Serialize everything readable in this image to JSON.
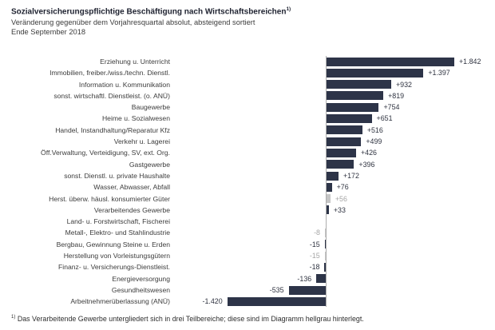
{
  "header": {
    "title": "Sozialversicherungspflichtige Beschäftigung nach Wirtschaftsbereichen",
    "title_superscript": "1)",
    "subtitle": "Veränderung gegenüber dem Vorjahresquartal absolut, absteigend sortiert",
    "period": "Ende September 2018"
  },
  "footnote": {
    "superscript": "1)",
    "text": "Das Verarbeitende Gewerbe untergliedert sich in drei Teilbereiche; diese sind im Diagramm hellgrau hinterlegt."
  },
  "colors": {
    "bar_primary": "#2d3448",
    "bar_highlight": "#c6c6c6",
    "value_primary": "#2f3340",
    "value_highlight": "#a6a6a6",
    "label_text": "#3c3c3c",
    "axis_line": "#adadad"
  },
  "chart_data": {
    "type": "bar",
    "orientation": "horizontal",
    "title": "Sozialversicherungspflichtige Beschäftigung nach Wirtschaftsbereichen 1)",
    "subtitle": "Veränderung gegenüber dem Vorjahresquartal absolut, absteigend sortiert",
    "period": "Ende September 2018",
    "sort": "absteigend",
    "value_range": [
      -1420,
      1842
    ],
    "grid": false,
    "legend": false,
    "highlight_note": "hellgrau = Teilbereiche des Verarbeitenden Gewerbes",
    "rows": [
      {
        "label": "Erziehung u. Unterricht",
        "value": 1842,
        "display": "+1.842",
        "gray": false
      },
      {
        "label": "Immobilien, freiber./wiss./techn. Dienstl.",
        "value": 1397,
        "display": "+1.397",
        "gray": false
      },
      {
        "label": "Information u. Kommunikation",
        "value": 932,
        "display": "+932",
        "gray": false
      },
      {
        "label": "sonst. wirtschaftl. Dienstleist. (o. ANÜ)",
        "value": 819,
        "display": "+819",
        "gray": false
      },
      {
        "label": "Baugewerbe",
        "value": 754,
        "display": "+754",
        "gray": false
      },
      {
        "label": "Heime u. Sozialwesen",
        "value": 651,
        "display": "+651",
        "gray": false
      },
      {
        "label": "Handel, Instandhaltung/Reparatur Kfz",
        "value": 516,
        "display": "+516",
        "gray": false
      },
      {
        "label": "Verkehr u. Lagerei",
        "value": 499,
        "display": "+499",
        "gray": false
      },
      {
        "label": "Öff.Verwaltung, Verteidigung, SV, ext. Org.",
        "value": 426,
        "display": "+426",
        "gray": false
      },
      {
        "label": "Gastgewerbe",
        "value": 396,
        "display": "+396",
        "gray": false
      },
      {
        "label": "sonst. Dienstl. u. private Haushalte",
        "value": 172,
        "display": "+172",
        "gray": false
      },
      {
        "label": "Wasser, Abwasser, Abfall",
        "value": 76,
        "display": "+76",
        "gray": false
      },
      {
        "label": "Herst. überw. häusl. konsumierter Güter",
        "value": 56,
        "display": "+56",
        "gray": true
      },
      {
        "label": "Verarbeitendes Gewerbe",
        "value": 33,
        "display": "+33",
        "gray": false
      },
      {
        "label": "Land- u. Forstwirtschaft, Fischerei",
        "value": 0,
        "display": "",
        "gray": false
      },
      {
        "label": "Metall-, Elektro- und Stahlindustrie",
        "value": -8,
        "display": "-8",
        "gray": true
      },
      {
        "label": "Bergbau, Gewinnung Steine u. Erden",
        "value": -15,
        "display": "-15",
        "gray": false
      },
      {
        "label": "Herstellung von Vorleistungsgütern",
        "value": -15,
        "display": "-15",
        "gray": true
      },
      {
        "label": "Finanz- u. Versicherungs-Dienstleist.",
        "value": -18,
        "display": "-18",
        "gray": false
      },
      {
        "label": "Energieversorgung",
        "value": -136,
        "display": "-136",
        "gray": false
      },
      {
        "label": "Gesundheitswesen",
        "value": -535,
        "display": "-535",
        "gray": false
      },
      {
        "label": "Arbeitnehmerüberlassung (ANÜ)",
        "value": -1420,
        "display": "-1.420",
        "gray": false
      }
    ]
  }
}
